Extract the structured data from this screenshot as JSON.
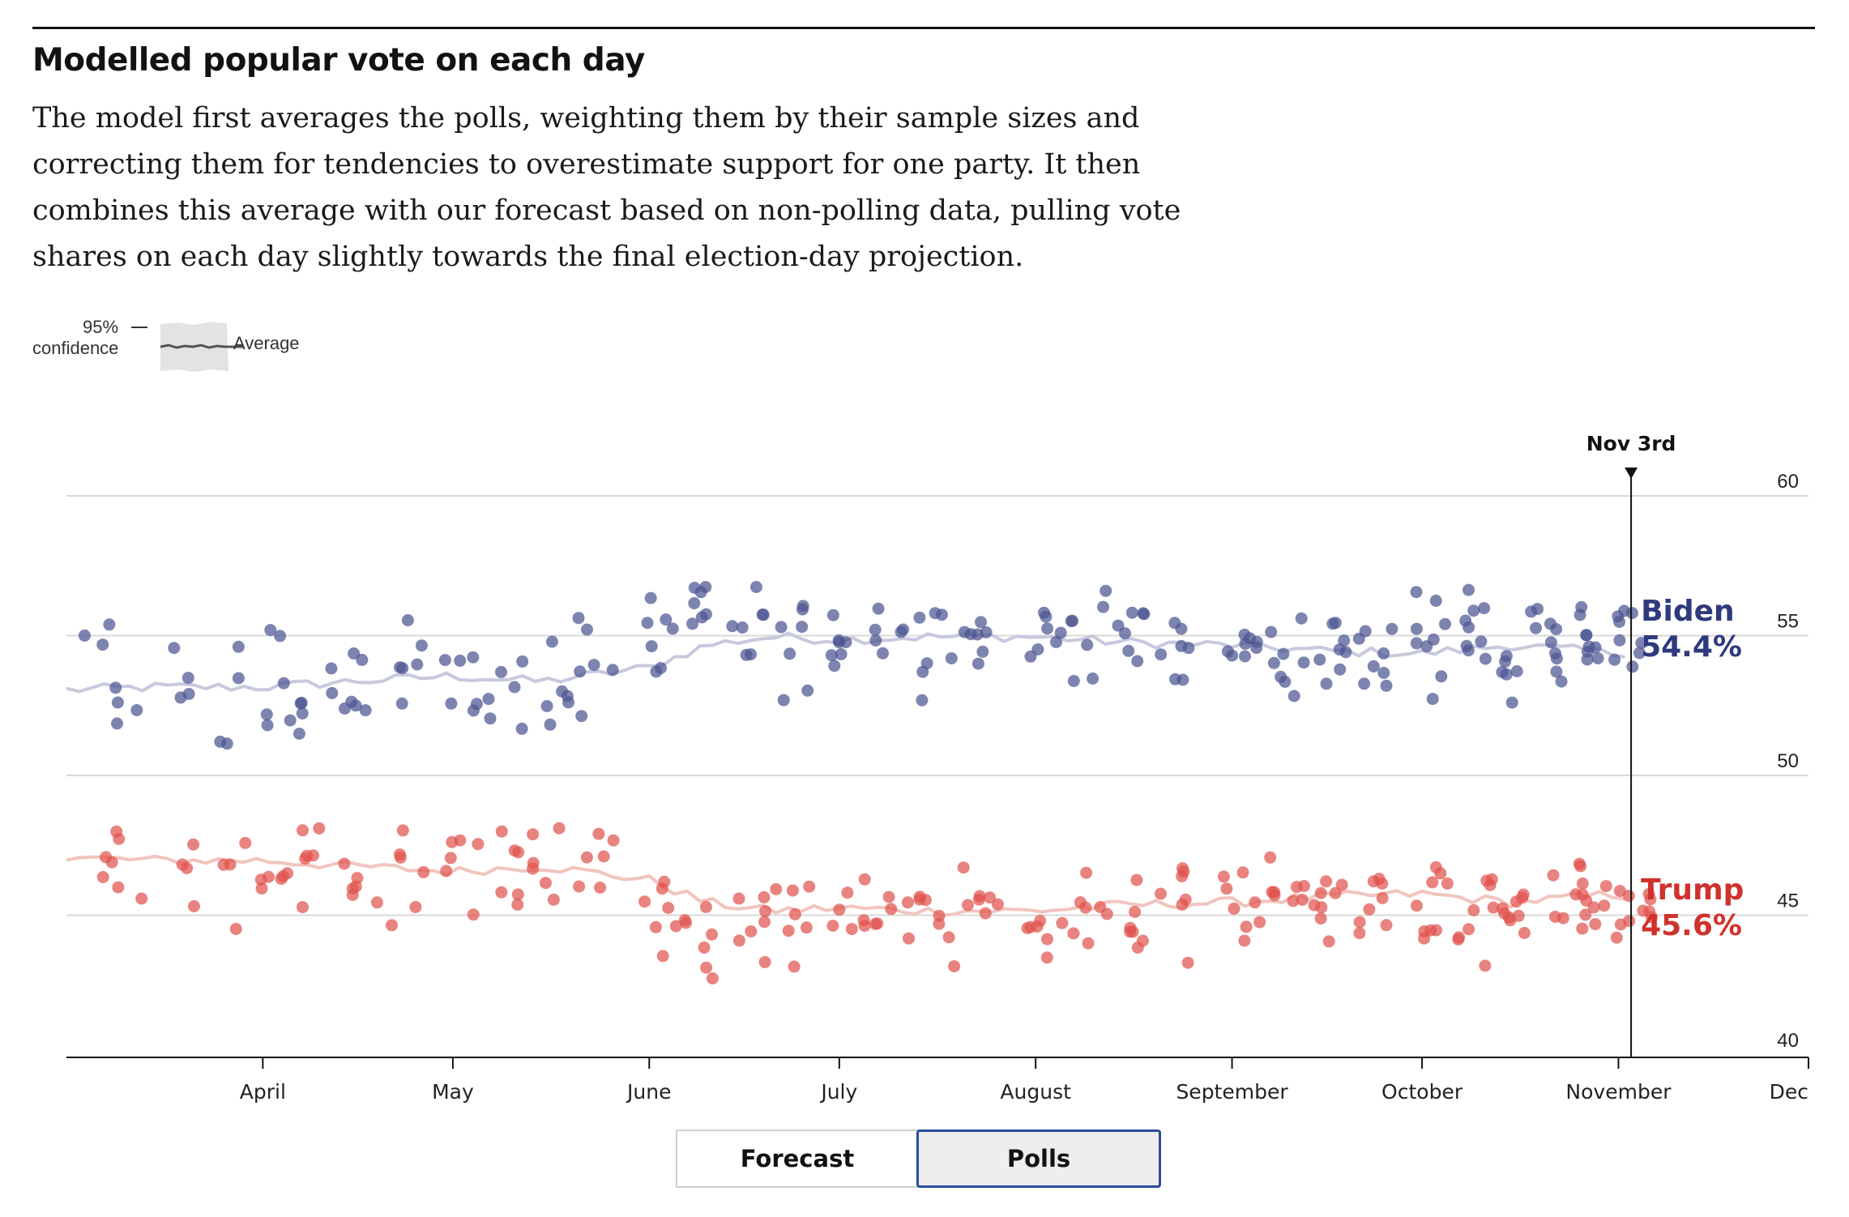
{
  "header": {
    "title": "Modelled popular vote on each day",
    "subtitle": "The model first averages the polls, weighting them by their sample sizes and correcting them for tendencies to overestimate support for one party. It then combines this average with our forecast based on non-polling data, pulling vote shares on each day slightly towards the final election-day projection."
  },
  "legend_key": {
    "band_label_line1": "95%",
    "band_label_line2": "confidence",
    "line_label": "Average"
  },
  "toggle": {
    "forecast_label": "Forecast",
    "polls_label": "Polls",
    "selected": "Polls"
  },
  "colors": {
    "biden": "#2e3a7d",
    "biden_points": "#4c5591",
    "biden_avg": "#c7c9dd",
    "trump": "#d0312d",
    "trump_points": "#e0534d",
    "trump_avg": "#f2c4bf",
    "grid": "#d9d9d9",
    "axis": "#121212"
  },
  "chart_data": {
    "type": "scatter",
    "x_axis": {
      "type": "date",
      "range": [
        "2020-03-01",
        "2020-12-01"
      ],
      "tick_labels": [
        "April",
        "May",
        "June",
        "July",
        "August",
        "September",
        "October",
        "November",
        "Dec"
      ],
      "tick_dates": [
        "2020-04-01",
        "2020-05-01",
        "2020-06-01",
        "2020-07-01",
        "2020-08-01",
        "2020-09-01",
        "2020-10-01",
        "2020-11-01",
        "2020-12-01"
      ]
    },
    "y_axis": {
      "range": [
        40,
        60
      ],
      "ticks": [
        40,
        45,
        50,
        55,
        60
      ],
      "position": "right"
    },
    "grid": true,
    "marker": {
      "date": "2020-11-03",
      "label": "Nov 3rd"
    },
    "series": [
      {
        "name": "Biden",
        "final_label": "54.4%",
        "average": [
          [
            "2020-03-01",
            53.0
          ],
          [
            "2020-03-15",
            53.1
          ],
          [
            "2020-04-01",
            53.1
          ],
          [
            "2020-04-15",
            53.3
          ],
          [
            "2020-05-01",
            53.5
          ],
          [
            "2020-05-15",
            53.3
          ],
          [
            "2020-06-01",
            53.8
          ],
          [
            "2020-06-10",
            54.6
          ],
          [
            "2020-06-20",
            54.9
          ],
          [
            "2020-07-01",
            54.8
          ],
          [
            "2020-07-15",
            54.9
          ],
          [
            "2020-08-01",
            54.9
          ],
          [
            "2020-08-15",
            54.7
          ],
          [
            "2020-09-01",
            54.6
          ],
          [
            "2020-09-15",
            54.4
          ],
          [
            "2020-10-01",
            54.3
          ],
          [
            "2020-10-15",
            54.6
          ],
          [
            "2020-11-01",
            54.3
          ],
          [
            "2020-11-03",
            54.4
          ]
        ],
        "poll_clusters": [
          {
            "date": "2020-03-04",
            "center": 54.0,
            "spread": 2.2,
            "n": 3
          },
          {
            "date": "2020-03-10",
            "center": 52.5,
            "spread": 1.8,
            "n": 4
          },
          {
            "date": "2020-03-17",
            "center": 53.5,
            "spread": 1.8,
            "n": 4
          },
          {
            "date": "2020-03-25",
            "center": 53.0,
            "spread": 2.0,
            "n": 4
          },
          {
            "date": "2020-04-01",
            "center": 53.2,
            "spread": 2.4,
            "n": 6
          },
          {
            "date": "2020-04-08",
            "center": 53.0,
            "spread": 2.0,
            "n": 6
          },
          {
            "date": "2020-04-15",
            "center": 53.3,
            "spread": 2.0,
            "n": 6
          },
          {
            "date": "2020-04-22",
            "center": 53.5,
            "spread": 2.2,
            "n": 6
          },
          {
            "date": "2020-05-01",
            "center": 53.3,
            "spread": 1.9,
            "n": 6
          },
          {
            "date": "2020-05-08",
            "center": 53.0,
            "spread": 1.8,
            "n": 6
          },
          {
            "date": "2020-05-15",
            "center": 53.5,
            "spread": 2.0,
            "n": 6
          },
          {
            "date": "2020-05-22",
            "center": 53.5,
            "spread": 2.0,
            "n": 6
          },
          {
            "date": "2020-06-01",
            "center": 54.3,
            "spread": 2.5,
            "n": 7
          },
          {
            "date": "2020-06-08",
            "center": 55.2,
            "spread": 2.0,
            "n": 7
          },
          {
            "date": "2020-06-15",
            "center": 55.0,
            "spread": 2.1,
            "n": 7
          },
          {
            "date": "2020-06-22",
            "center": 54.8,
            "spread": 2.0,
            "n": 7
          },
          {
            "date": "2020-07-01",
            "center": 54.8,
            "spread": 1.7,
            "n": 7
          },
          {
            "date": "2020-07-08",
            "center": 55.2,
            "spread": 1.8,
            "n": 6
          },
          {
            "date": "2020-07-15",
            "center": 54.8,
            "spread": 1.8,
            "n": 7
          },
          {
            "date": "2020-07-22",
            "center": 54.8,
            "spread": 1.8,
            "n": 7
          },
          {
            "date": "2020-08-01",
            "center": 55.0,
            "spread": 1.6,
            "n": 7
          },
          {
            "date": "2020-08-08",
            "center": 54.8,
            "spread": 1.6,
            "n": 7
          },
          {
            "date": "2020-08-15",
            "center": 54.8,
            "spread": 1.6,
            "n": 7
          },
          {
            "date": "2020-08-22",
            "center": 54.7,
            "spread": 1.7,
            "n": 7
          },
          {
            "date": "2020-09-01",
            "center": 54.4,
            "spread": 1.6,
            "n": 8
          },
          {
            "date": "2020-09-08",
            "center": 54.3,
            "spread": 1.6,
            "n": 8
          },
          {
            "date": "2020-09-15",
            "center": 54.4,
            "spread": 1.6,
            "n": 8
          },
          {
            "date": "2020-09-22",
            "center": 54.3,
            "spread": 1.6,
            "n": 8
          },
          {
            "date": "2020-10-01",
            "center": 55.0,
            "spread": 2.0,
            "n": 9
          },
          {
            "date": "2020-10-08",
            "center": 55.2,
            "spread": 2.2,
            "n": 9
          },
          {
            "date": "2020-10-15",
            "center": 55.0,
            "spread": 2.0,
            "n": 9
          },
          {
            "date": "2020-10-22",
            "center": 54.5,
            "spread": 1.7,
            "n": 9
          },
          {
            "date": "2020-10-28",
            "center": 54.8,
            "spread": 1.6,
            "n": 9
          },
          {
            "date": "2020-11-02",
            "center": 54.6,
            "spread": 1.6,
            "n": 7
          }
        ]
      },
      {
        "name": "Trump",
        "final_label": "45.6%",
        "average": [
          [
            "2020-03-01",
            47.0
          ],
          [
            "2020-03-15",
            46.9
          ],
          [
            "2020-04-01",
            46.9
          ],
          [
            "2020-04-15",
            46.7
          ],
          [
            "2020-05-01",
            46.5
          ],
          [
            "2020-05-15",
            46.7
          ],
          [
            "2020-06-01",
            46.2
          ],
          [
            "2020-06-10",
            45.4
          ],
          [
            "2020-06-20",
            45.1
          ],
          [
            "2020-07-01",
            45.2
          ],
          [
            "2020-07-15",
            45.1
          ],
          [
            "2020-08-01",
            45.1
          ],
          [
            "2020-08-15",
            45.3
          ],
          [
            "2020-09-01",
            45.4
          ],
          [
            "2020-09-15",
            45.6
          ],
          [
            "2020-10-01",
            45.7
          ],
          [
            "2020-10-15",
            45.4
          ],
          [
            "2020-11-01",
            45.7
          ],
          [
            "2020-11-03",
            45.6
          ]
        ],
        "poll_clusters": [
          {
            "date": "2020-03-04",
            "center": 46.3,
            "spread": 2.3,
            "n": 3
          },
          {
            "date": "2020-03-10",
            "center": 47.0,
            "spread": 2.2,
            "n": 4
          },
          {
            "date": "2020-03-17",
            "center": 46.3,
            "spread": 1.8,
            "n": 4
          },
          {
            "date": "2020-03-25",
            "center": 46.5,
            "spread": 2.0,
            "n": 4
          },
          {
            "date": "2020-04-01",
            "center": 46.6,
            "spread": 2.3,
            "n": 6
          },
          {
            "date": "2020-04-08",
            "center": 46.7,
            "spread": 2.0,
            "n": 6
          },
          {
            "date": "2020-04-15",
            "center": 46.5,
            "spread": 2.0,
            "n": 6
          },
          {
            "date": "2020-04-22",
            "center": 46.3,
            "spread": 2.0,
            "n": 6
          },
          {
            "date": "2020-05-01",
            "center": 46.6,
            "spread": 1.8,
            "n": 6
          },
          {
            "date": "2020-05-08",
            "center": 46.8,
            "spread": 1.8,
            "n": 6
          },
          {
            "date": "2020-05-15",
            "center": 46.5,
            "spread": 1.9,
            "n": 6
          },
          {
            "date": "2020-05-22",
            "center": 46.6,
            "spread": 1.9,
            "n": 6
          },
          {
            "date": "2020-06-01",
            "center": 45.5,
            "spread": 2.4,
            "n": 7
          },
          {
            "date": "2020-06-08",
            "center": 44.6,
            "spread": 2.0,
            "n": 7
          },
          {
            "date": "2020-06-15",
            "center": 44.8,
            "spread": 2.0,
            "n": 7
          },
          {
            "date": "2020-06-22",
            "center": 44.8,
            "spread": 2.0,
            "n": 7
          },
          {
            "date": "2020-07-01",
            "center": 45.0,
            "spread": 1.6,
            "n": 7
          },
          {
            "date": "2020-07-08",
            "center": 44.9,
            "spread": 1.7,
            "n": 6
          },
          {
            "date": "2020-07-15",
            "center": 44.8,
            "spread": 1.8,
            "n": 7
          },
          {
            "date": "2020-07-22",
            "center": 44.9,
            "spread": 1.8,
            "n": 7
          },
          {
            "date": "2020-08-01",
            "center": 44.9,
            "spread": 1.6,
            "n": 7
          },
          {
            "date": "2020-08-08",
            "center": 44.8,
            "spread": 1.7,
            "n": 7
          },
          {
            "date": "2020-08-15",
            "center": 45.0,
            "spread": 1.6,
            "n": 7
          },
          {
            "date": "2020-08-22",
            "center": 45.1,
            "spread": 1.7,
            "n": 7
          },
          {
            "date": "2020-09-01",
            "center": 45.5,
            "spread": 1.5,
            "n": 8
          },
          {
            "date": "2020-09-08",
            "center": 45.6,
            "spread": 1.6,
            "n": 8
          },
          {
            "date": "2020-09-15",
            "center": 45.5,
            "spread": 1.6,
            "n": 8
          },
          {
            "date": "2020-09-22",
            "center": 45.6,
            "spread": 1.6,
            "n": 8
          },
          {
            "date": "2020-10-01",
            "center": 45.0,
            "spread": 2.0,
            "n": 9
          },
          {
            "date": "2020-10-08",
            "center": 44.8,
            "spread": 2.0,
            "n": 9
          },
          {
            "date": "2020-10-15",
            "center": 44.5,
            "spread": 2.0,
            "n": 9
          },
          {
            "date": "2020-10-22",
            "center": 45.4,
            "spread": 1.6,
            "n": 9
          },
          {
            "date": "2020-10-28",
            "center": 45.3,
            "spread": 1.6,
            "n": 9
          },
          {
            "date": "2020-11-02",
            "center": 45.3,
            "spread": 1.6,
            "n": 7
          }
        ]
      }
    ]
  }
}
